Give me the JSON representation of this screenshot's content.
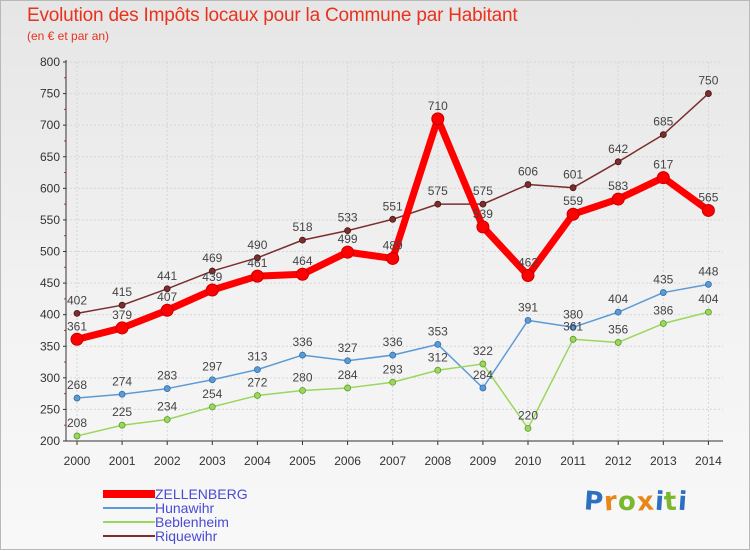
{
  "header": {
    "title": "Evolution des Impôts locaux pour la Commune par Habitant",
    "subtitle": "(en € et par an)"
  },
  "logo": {
    "text": "Proxiti",
    "letters": [
      "P",
      "r",
      "o",
      "x",
      "i",
      "t",
      "i"
    ],
    "colors": [
      "#2e6fc0",
      "#e8861a",
      "#7cb82f",
      "#e8861a",
      "#2e6fc0",
      "#7cb82f",
      "#2e6fc0"
    ]
  },
  "chart_data": {
    "type": "line",
    "title": "Evolution des Impôts locaux pour la Commune par Habitant",
    "subtitle": "(en € et par an)",
    "xlabel": "",
    "ylabel": "",
    "x": [
      "2000",
      "2001",
      "2002",
      "2003",
      "2004",
      "2005",
      "2006",
      "2007",
      "2008",
      "2009",
      "2010",
      "2011",
      "2012",
      "2013",
      "2014"
    ],
    "ylim": [
      200,
      800
    ],
    "yticks": [
      200,
      250,
      300,
      350,
      400,
      450,
      500,
      550,
      600,
      650,
      700,
      750,
      800
    ],
    "grid": true,
    "legend_position": "bottom-left",
    "series": [
      {
        "name": "ZELLENBERG",
        "color": "#ff0000",
        "values": [
          361,
          379,
          407,
          439,
          461,
          464,
          499,
          489,
          710,
          539,
          462,
          559,
          583,
          617,
          565
        ]
      },
      {
        "name": "Hunawihr",
        "color": "#5b9bd5",
        "values": [
          268,
          274,
          283,
          297,
          313,
          336,
          327,
          336,
          353,
          284,
          391,
          380,
          404,
          435,
          448
        ]
      },
      {
        "name": "Beblenheim",
        "color": "#9bd65d",
        "values": [
          208,
          225,
          234,
          254,
          272,
          280,
          284,
          293,
          312,
          322,
          220,
          361,
          356,
          386,
          404
        ]
      },
      {
        "name": "Riquewihr",
        "color": "#7a2e2e",
        "values": [
          402,
          415,
          441,
          469,
          490,
          518,
          533,
          551,
          575,
          575,
          606,
          601,
          642,
          685,
          750
        ]
      }
    ]
  }
}
